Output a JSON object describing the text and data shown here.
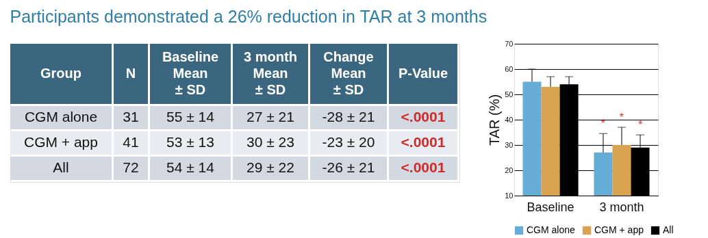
{
  "chart_data": [
    {
      "type": "other",
      "title": "Participants demonstrated a 26% reduction in TAR at 3 months",
      "annotations": [
        "Group",
        "N",
        "Baseline\nMean\n± SD",
        "3 month\nMean\n± SD",
        "Change\nMean\n± SD",
        "P-Value",
        "CGM alone",
        "31",
        "55 ± 14",
        "27 ± 21",
        "-28 ± 21",
        "<.0001",
        "CGM + app",
        "41",
        "53 ± 13",
        "30 ± 23",
        "-23 ± 20",
        "<.0001",
        "All",
        "72",
        "54 ± 14",
        "29 ± 22",
        "-26 ± 21",
        "<.0001"
      ]
    },
    {
      "type": "bar",
      "ylabel": "TAR (%)",
      "categories": [
        "Baseline",
        "3 month"
      ],
      "series": [
        {
          "name": "CGM alone",
          "color": "#65acd6",
          "values": [
            55,
            27
          ],
          "errors": [
            [
              55,
              60
            ],
            [
              27,
              34.5
            ]
          ],
          "value_labels": [
            null,
            "*"
          ]
        },
        {
          "name": "CGM + app",
          "color": "#d9a351",
          "values": [
            53,
            30
          ],
          "errors": [
            [
              53,
              57
            ],
            [
              30,
              37
            ]
          ],
          "value_labels": [
            null,
            "*"
          ]
        },
        {
          "name": "All",
          "color": "#000000",
          "values": [
            54,
            29
          ],
          "errors": [
            [
              54,
              57
            ],
            [
              29,
              34
            ]
          ],
          "value_labels": [
            null,
            "*"
          ]
        }
      ],
      "ylim": [
        10,
        70
      ],
      "yticks": [
        10,
        20,
        30,
        40,
        50,
        60,
        70
      ],
      "grid": "y",
      "legend": "bottom"
    }
  ]
}
